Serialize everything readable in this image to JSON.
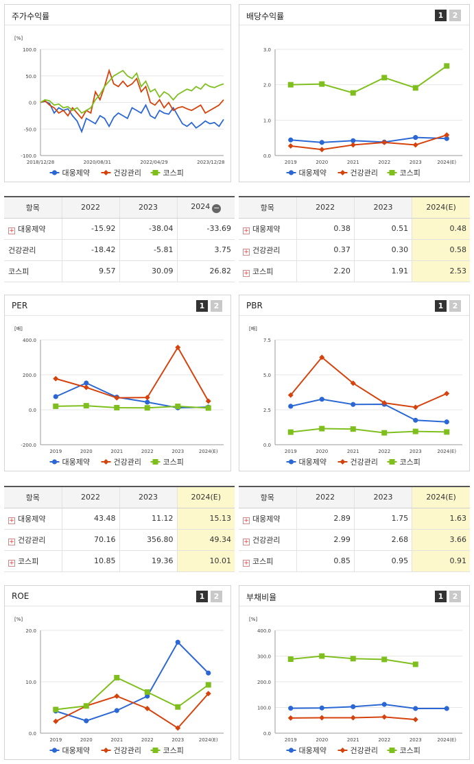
{
  "colors": {
    "daewoong": "#2a67d4",
    "health": "#d6420c",
    "kospi": "#7fbf1d"
  },
  "legend": [
    "대웅제약",
    "건강관리",
    "코스피"
  ],
  "panels": {
    "stock": {
      "title": "주가수익률"
    },
    "dividend": {
      "title": "배당수익률",
      "b1": "1",
      "b2": "2"
    },
    "per": {
      "title": "PER",
      "b1": "1",
      "b2": "2"
    },
    "pbr": {
      "title": "PBR",
      "b1": "1",
      "b2": "2"
    },
    "roe": {
      "title": "ROE",
      "b1": "1",
      "b2": "2"
    },
    "debt": {
      "title": "부채비율",
      "b1": "1",
      "b2": "2"
    }
  },
  "tables": {
    "stock": {
      "headers": [
        "항목",
        "2022",
        "2023",
        "2024"
      ],
      "rows": [
        {
          "name": "대웅제약",
          "plus": true,
          "v": [
            "-15.92",
            "-38.04",
            "-33.69"
          ]
        },
        {
          "name": "건강관리",
          "plus": false,
          "v": [
            "-18.42",
            "-5.81",
            "3.75"
          ]
        },
        {
          "name": "코스피",
          "plus": false,
          "v": [
            "9.57",
            "30.09",
            "26.82"
          ]
        }
      ]
    },
    "dividend": {
      "headers": [
        "항목",
        "2022",
        "2023",
        "2024(E)"
      ],
      "rows": [
        {
          "name": "대웅제약",
          "plus": true,
          "v": [
            "0.38",
            "0.51",
            "0.48"
          ]
        },
        {
          "name": "건강관리",
          "plus": true,
          "v": [
            "0.37",
            "0.30",
            "0.58"
          ]
        },
        {
          "name": "코스피",
          "plus": true,
          "v": [
            "2.20",
            "1.91",
            "2.53"
          ]
        }
      ]
    },
    "per": {
      "headers": [
        "항목",
        "2022",
        "2023",
        "2024(E)"
      ],
      "rows": [
        {
          "name": "대웅제약",
          "plus": true,
          "v": [
            "43.48",
            "11.12",
            "15.13"
          ]
        },
        {
          "name": "건강관리",
          "plus": true,
          "v": [
            "70.16",
            "356.80",
            "49.34"
          ]
        },
        {
          "name": "코스피",
          "plus": true,
          "v": [
            "10.85",
            "19.36",
            "10.01"
          ]
        }
      ]
    },
    "pbr": {
      "headers": [
        "항목",
        "2022",
        "2023",
        "2024(E)"
      ],
      "rows": [
        {
          "name": "대웅제약",
          "plus": true,
          "v": [
            "2.89",
            "1.75",
            "1.63"
          ]
        },
        {
          "name": "건강관리",
          "plus": true,
          "v": [
            "2.99",
            "2.68",
            "3.66"
          ]
        },
        {
          "name": "코스피",
          "plus": true,
          "v": [
            "0.85",
            "0.95",
            "0.91"
          ]
        }
      ]
    }
  },
  "chart_data": [
    {
      "id": "stock",
      "type": "line",
      "unit": "[%]",
      "ylim": [
        -100,
        100
      ],
      "yticks": [
        "100.0",
        "50.0",
        "0.0",
        "-50.0",
        "-100.0"
      ],
      "xticks": [
        "2018/12/28",
        "2020/08/31",
        "2022/04/29",
        "2023/12/28"
      ],
      "series": [
        {
          "name": "대웅제약",
          "values": [
            0,
            2,
            -2,
            -20,
            -10,
            -15,
            -12,
            -25,
            -35,
            -55,
            -30,
            -35,
            -40,
            -25,
            -30,
            -45,
            -28,
            -20,
            -25,
            -30,
            -10,
            -15,
            -20,
            -5,
            -25,
            -30,
            -15,
            -20,
            -22,
            -10,
            -25,
            -40,
            -45,
            -38,
            -48,
            -42,
            -35,
            -40,
            -38,
            -45,
            -32
          ]
        },
        {
          "name": "건강관리",
          "values": [
            0,
            3,
            -5,
            -10,
            -20,
            -15,
            -25,
            -10,
            -20,
            -30,
            -15,
            -20,
            20,
            5,
            30,
            60,
            35,
            30,
            40,
            30,
            35,
            45,
            20,
            30,
            0,
            -5,
            5,
            -10,
            0,
            -15,
            -10,
            -8,
            -12,
            -15,
            -10,
            -5,
            -20,
            -15,
            -10,
            -5,
            5
          ]
        },
        {
          "name": "코스피",
          "values": [
            0,
            5,
            3,
            -5,
            -3,
            -10,
            -8,
            -15,
            -10,
            -20,
            -15,
            -10,
            5,
            15,
            30,
            40,
            50,
            55,
            60,
            50,
            45,
            55,
            30,
            40,
            20,
            25,
            10,
            20,
            15,
            5,
            15,
            20,
            25,
            22,
            30,
            25,
            35,
            30,
            28,
            32,
            35
          ]
        }
      ]
    },
    {
      "id": "dividend",
      "type": "line",
      "unit": "",
      "ylim": [
        0,
        3
      ],
      "yticks": [
        "3.0",
        "2.0",
        "1.0",
        "0.0"
      ],
      "categories": [
        "2019",
        "2020",
        "2021",
        "2022",
        "2023",
        "2024(E)"
      ],
      "series": [
        {
          "name": "대웅제약",
          "values": [
            0.44,
            0.37,
            0.42,
            0.38,
            0.51,
            0.48
          ]
        },
        {
          "name": "건강관리",
          "values": [
            0.27,
            0.17,
            0.3,
            0.37,
            0.3,
            0.58
          ]
        },
        {
          "name": "코스피",
          "values": [
            2.0,
            2.02,
            1.77,
            2.2,
            1.91,
            2.53
          ]
        }
      ]
    },
    {
      "id": "per",
      "type": "line",
      "unit": "[배]",
      "ylim": [
        -200,
        400
      ],
      "yticks": [
        "400.0",
        "200.0",
        "0.0",
        "-200.0"
      ],
      "categories": [
        "2019",
        "2020",
        "2021",
        "2022",
        "2023",
        "2024(E)"
      ],
      "series": [
        {
          "name": "대웅제약",
          "values": [
            75,
            153,
            72,
            43.48,
            11.12,
            15.13
          ]
        },
        {
          "name": "건강관리",
          "values": [
            178,
            128,
            68,
            70.16,
            356.8,
            49.34
          ]
        },
        {
          "name": "코스피",
          "values": [
            20,
            23,
            12,
            10.85,
            19.36,
            10.01
          ]
        }
      ]
    },
    {
      "id": "pbr",
      "type": "line",
      "unit": "[배]",
      "ylim": [
        0,
        7.5
      ],
      "yticks": [
        "7.5",
        "5.0",
        "2.5",
        "0.0"
      ],
      "categories": [
        "2019",
        "2020",
        "2021",
        "2022",
        "2023",
        "2024(E)"
      ],
      "series": [
        {
          "name": "대웅제약",
          "values": [
            2.75,
            3.25,
            2.88,
            2.89,
            1.75,
            1.63
          ]
        },
        {
          "name": "건강관리",
          "values": [
            3.55,
            6.25,
            4.4,
            2.99,
            2.68,
            3.66
          ]
        },
        {
          "name": "코스피",
          "values": [
            0.9,
            1.15,
            1.12,
            0.85,
            0.95,
            0.91
          ]
        }
      ]
    },
    {
      "id": "roe",
      "type": "line",
      "unit": "[%]",
      "ylim": [
        0,
        20
      ],
      "yticks": [
        "20.0",
        "10.0",
        "0.0"
      ],
      "categories": [
        "2019",
        "2020",
        "2021",
        "2022",
        "2023",
        "2024(E)"
      ],
      "series": [
        {
          "name": "대웅제약",
          "values": [
            4.3,
            2.4,
            4.4,
            7.2,
            17.7,
            11.7
          ]
        },
        {
          "name": "건강관리",
          "values": [
            2.3,
            5.3,
            7.2,
            4.8,
            1.0,
            7.7
          ]
        },
        {
          "name": "코스피",
          "values": [
            4.6,
            5.3,
            10.8,
            8.0,
            5.1,
            9.4
          ]
        }
      ]
    },
    {
      "id": "debt",
      "type": "line",
      "unit": "[%]",
      "ylim": [
        0,
        400
      ],
      "yticks": [
        "400.0",
        "300.0",
        "200.0",
        "100.0",
        "0.0"
      ],
      "categories": [
        "2019",
        "2020",
        "2021",
        "2022",
        "2023",
        "2024(E)"
      ],
      "series": [
        {
          "name": "대웅제약",
          "values": [
            97,
            98,
            103,
            112,
            96,
            96
          ]
        },
        {
          "name": "건강관리",
          "values": [
            59,
            60,
            60,
            63,
            53,
            null
          ]
        },
        {
          "name": "코스피",
          "values": [
            288,
            300,
            290,
            287,
            268,
            null
          ]
        }
      ]
    }
  ]
}
